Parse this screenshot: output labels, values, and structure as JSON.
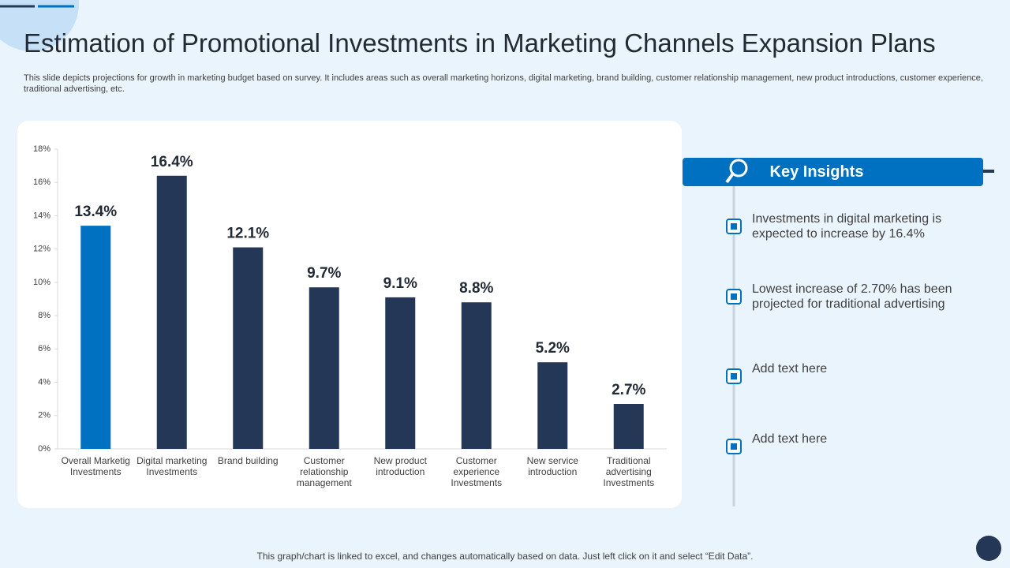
{
  "header": {
    "title": "Estimation of Promotional Investments in Marketing Channels Expansion Plans",
    "subtitle": "This slide depicts projections for growth in marketing budget based on survey. It includes areas such as overall marketing horizons, digital marketing, brand building, customer relationship management, new product introductions, customer experience, traditional advertising, etc."
  },
  "chart_data": {
    "type": "bar",
    "categories": [
      "Overall Marketig Investments",
      "Digital marketing Investments",
      "Brand building",
      "Customer relationship management",
      "New product introduction",
      "Customer experience Investments",
      "New service introduction",
      "Traditional advertising Investments"
    ],
    "values": [
      13.4,
      16.4,
      12.1,
      9.7,
      9.1,
      8.8,
      5.2,
      2.7
    ],
    "value_labels": [
      "13.4%",
      "16.4%",
      "12.1%",
      "9.7%",
      "9.1%",
      "8.8%",
      "5.2%",
      "2.7%"
    ],
    "colors": [
      "#0070c0",
      "#253756",
      "#253756",
      "#253756",
      "#253756",
      "#253756",
      "#253756",
      "#253756"
    ],
    "ylim": [
      0,
      18
    ],
    "yticks": [
      {
        "value": 0,
        "label": "0%"
      },
      {
        "value": 2,
        "label": "2%"
      },
      {
        "value": 4,
        "label": "4%"
      },
      {
        "value": 6,
        "label": "6%"
      },
      {
        "value": 8,
        "label": "8%"
      },
      {
        "value": 10,
        "label": "10%"
      },
      {
        "value": 12,
        "label": "12%"
      },
      {
        "value": 14,
        "label": "14%"
      },
      {
        "value": 16,
        "label": "16%"
      },
      {
        "value": 18,
        "label": "18%"
      }
    ],
    "grid": false
  },
  "insights": {
    "title": "Key Insights",
    "items": [
      "Investments  in digital marketing is expected to increase by 16.4%",
      "Lowest increase of 2.70% has been projected for traditional advertising",
      "Add text here",
      "Add text here"
    ]
  },
  "footer": "This graph/chart is linked to excel, and changes automatically based on data. Just left click on it and select “Edit Data”."
}
